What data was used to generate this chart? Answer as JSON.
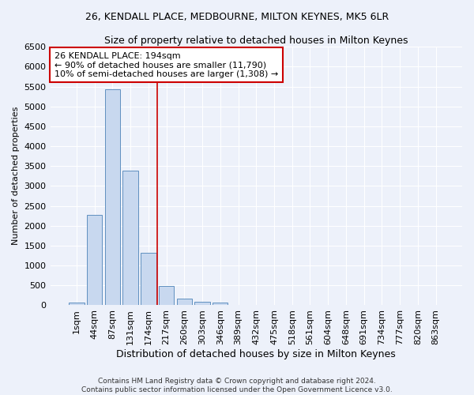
{
  "title1": "26, KENDALL PLACE, MEDBOURNE, MILTON KEYNES, MK5 6LR",
  "title2": "Size of property relative to detached houses in Milton Keynes",
  "xlabel": "Distribution of detached houses by size in Milton Keynes",
  "ylabel": "Number of detached properties",
  "footnote1": "Contains HM Land Registry data © Crown copyright and database right 2024.",
  "footnote2": "Contains public sector information licensed under the Open Government Licence v3.0.",
  "bar_labels": [
    "1sqm",
    "44sqm",
    "87sqm",
    "131sqm",
    "174sqm",
    "217sqm",
    "260sqm",
    "303sqm",
    "346sqm",
    "389sqm",
    "432sqm",
    "475sqm",
    "518sqm",
    "561sqm",
    "604sqm",
    "648sqm",
    "691sqm",
    "734sqm",
    "777sqm",
    "820sqm",
    "863sqm"
  ],
  "bar_values": [
    70,
    2280,
    5430,
    3380,
    1310,
    480,
    160,
    85,
    60,
    0,
    0,
    0,
    0,
    0,
    0,
    0,
    0,
    0,
    0,
    0,
    0
  ],
  "bar_color": "#c8d8ef",
  "bar_edge_color": "#6090c0",
  "reference_line_x": 4.5,
  "annotation_text": "26 KENDALL PLACE: 194sqm\n← 90% of detached houses are smaller (11,790)\n10% of semi-detached houses are larger (1,308) →",
  "annotation_box_color": "#ffffff",
  "annotation_box_edge": "#cc0000",
  "vline_color": "#cc0000",
  "bg_color": "#edf1fa",
  "grid_color": "#ffffff",
  "ylim": [
    0,
    6500
  ],
  "title1_fontsize": 9,
  "title2_fontsize": 9,
  "xlabel_fontsize": 9,
  "ylabel_fontsize": 8,
  "tick_fontsize": 8,
  "annotation_fontsize": 8,
  "footnote_fontsize": 6.5
}
